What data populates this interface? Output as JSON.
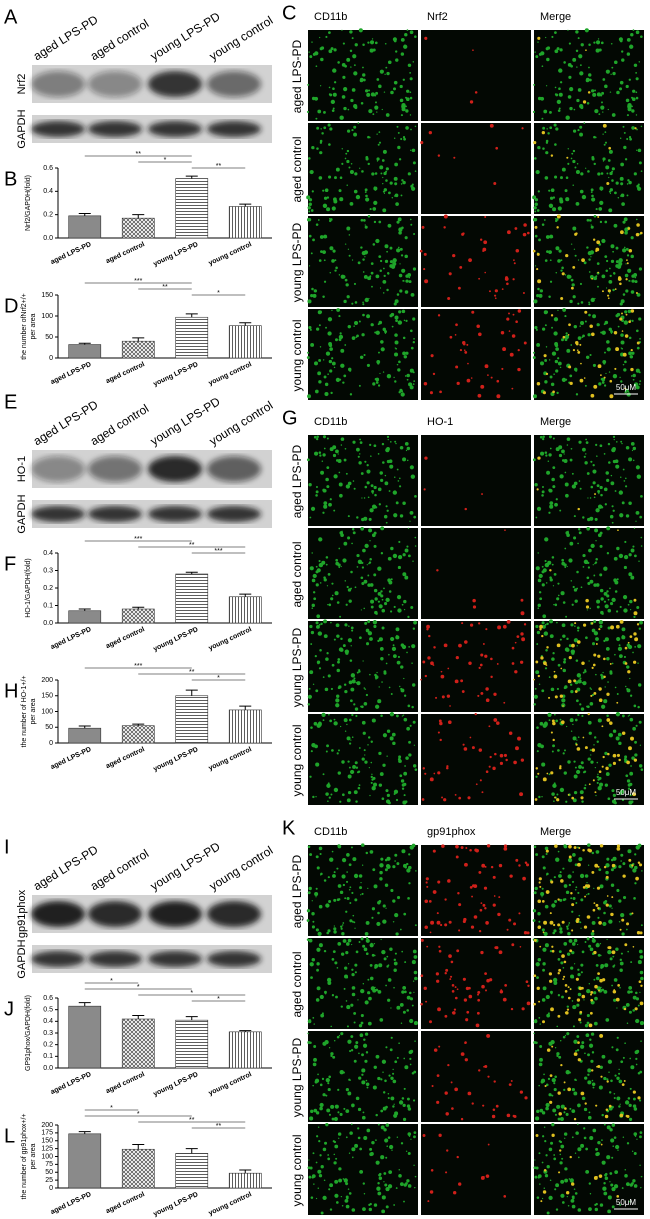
{
  "sections": [
    {
      "blot": {
        "letter": "A",
        "columns": [
          "aged LPS-PD",
          "aged control",
          "young LPS-PD",
          "young control"
        ],
        "rows": [
          "Nrf2",
          "GAPDH"
        ]
      },
      "micro": {
        "letter": "C",
        "headers": [
          "CD11b",
          "Nrf2",
          "Merge"
        ],
        "rows": [
          "aged LPS-PD",
          "aged control",
          "young LPS-PD",
          "young control"
        ],
        "scale": "50μM"
      }
    },
    {
      "blot": {
        "letter": "E",
        "columns": [
          "aged LPS-PD",
          "aged control",
          "young LPS-PD",
          "young control"
        ],
        "rows": [
          "HO-1",
          "GAPDH"
        ]
      },
      "micro": {
        "letter": "G",
        "headers": [
          "CD11b",
          "HO-1",
          "Merge"
        ],
        "rows": [
          "aged LPS-PD",
          "aged control",
          "young LPS-PD",
          "young control"
        ],
        "scale": "50μM"
      }
    },
    {
      "blot": {
        "letter": "I",
        "columns": [
          "aged LPS-PD",
          "aged control",
          "young LPS-PD",
          "young control"
        ],
        "rows": [
          "gp91phox",
          "GAPDH"
        ]
      },
      "micro": {
        "letter": "K",
        "headers": [
          "CD11b",
          "gp91phox",
          "Merge"
        ],
        "rows": [
          "aged LPS-PD",
          "aged control",
          "young LPS-PD",
          "young control"
        ],
        "scale": "50μM"
      }
    }
  ],
  "chart_data": [
    {
      "type": "bar",
      "letter": "B",
      "ylabel": [
        "Nrf2/GAPDH(fold)"
      ],
      "categories": [
        "aged LPS-PD",
        "aged control",
        "young LPS-PD",
        "young control"
      ],
      "values": [
        0.19,
        0.17,
        0.51,
        0.27
      ],
      "errors": [
        0.02,
        0.03,
        0.02,
        0.02
      ],
      "ylim": [
        0,
        0.6
      ],
      "yticks": [
        {
          "value": 0,
          "label": "0.0"
        },
        {
          "value": 0.2,
          "label": "0.2"
        },
        {
          "value": 0.4,
          "label": "0.4"
        },
        {
          "value": 0.6,
          "label": "0.6"
        }
      ],
      "annotations": [
        {
          "text": "**",
          "pair": [
            0,
            2
          ]
        },
        {
          "text": "*",
          "pair": [
            1,
            2
          ]
        },
        {
          "text": "**",
          "pair": [
            2,
            3
          ]
        }
      ]
    },
    {
      "type": "bar",
      "letter": "D",
      "ylabel": [
        "the number ofNrf2+/+",
        "per area"
      ],
      "categories": [
        "aged LPS-PD",
        "aged control",
        "young LPS-PD",
        "young control"
      ],
      "values": [
        32,
        40,
        97,
        77
      ],
      "errors": [
        3,
        8,
        8,
        7
      ],
      "ylim": [
        0,
        150
      ],
      "yticks": [
        0,
        50,
        100,
        150
      ],
      "annotations": [
        {
          "text": "***",
          "pair": [
            0,
            2
          ]
        },
        {
          "text": "**",
          "pair": [
            1,
            2
          ]
        },
        {
          "text": "*",
          "pair": [
            2,
            3
          ]
        }
      ]
    },
    {
      "type": "bar",
      "letter": "F",
      "ylabel": [
        "HO-1/GAPDH(fold)"
      ],
      "categories": [
        "aged LPS-PD",
        "aged control",
        "young LPS-PD",
        "young control"
      ],
      "values": [
        0.07,
        0.08,
        0.28,
        0.15
      ],
      "errors": [
        0.01,
        0.01,
        0.01,
        0.015
      ],
      "ylim": [
        0,
        0.4
      ],
      "yticks": [
        {
          "value": 0,
          "label": "0.0"
        },
        {
          "value": 0.1,
          "label": "0.1"
        },
        {
          "value": 0.2,
          "label": "0.2"
        },
        {
          "value": 0.3,
          "label": "0.3"
        },
        {
          "value": 0.4,
          "label": "0.4"
        }
      ],
      "annotations": [
        {
          "text": "***",
          "pair": [
            0,
            2
          ]
        },
        {
          "text": "**",
          "pair": [
            1,
            3
          ]
        },
        {
          "text": "***",
          "pair": [
            2,
            3
          ]
        }
      ]
    },
    {
      "type": "bar",
      "letter": "H",
      "ylabel": [
        "the number of HO-1+/+",
        "per area"
      ],
      "categories": [
        "aged LPS-PD",
        "aged control",
        "young LPS-PD",
        "young control"
      ],
      "values": [
        47,
        55,
        150,
        105
      ],
      "errors": [
        7,
        5,
        18,
        12
      ],
      "ylim": [
        0,
        200
      ],
      "yticks": [
        0,
        50,
        100,
        150,
        200
      ],
      "annotations": [
        {
          "text": "***",
          "pair": [
            0,
            2
          ]
        },
        {
          "text": "**",
          "pair": [
            1,
            3
          ]
        },
        {
          "text": "*",
          "pair": [
            2,
            3
          ]
        }
      ]
    },
    {
      "type": "bar",
      "letter": "J",
      "ylabel": [
        "GP91phox/GAPDH(fold)"
      ],
      "categories": [
        "aged LPS-PD",
        "aged control",
        "young LPS-PD",
        "young control"
      ],
      "values": [
        0.53,
        0.42,
        0.41,
        0.31
      ],
      "errors": [
        0.03,
        0.03,
        0.03,
        0.01
      ],
      "ylim": [
        0,
        0.6
      ],
      "yticks": [
        {
          "value": 0,
          "label": "0.0"
        },
        {
          "value": 0.1,
          "label": "0.1"
        },
        {
          "value": 0.2,
          "label": "0.2"
        },
        {
          "value": 0.3,
          "label": "0.3"
        },
        {
          "value": 0.4,
          "label": "0.4"
        },
        {
          "value": 0.5,
          "label": "0.5"
        },
        {
          "value": 0.6,
          "label": "0.6"
        }
      ],
      "annotations": [
        {
          "text": "*",
          "pair": [
            0,
            1
          ]
        },
        {
          "text": "*",
          "pair": [
            0,
            2
          ]
        },
        {
          "text": "*",
          "pair": [
            1,
            3
          ]
        },
        {
          "text": "*",
          "pair": [
            2,
            3
          ]
        }
      ]
    },
    {
      "type": "bar",
      "letter": "L",
      "ylabel": [
        "the number of gp91phox+/+",
        "per area"
      ],
      "categories": [
        "aged LPS-PD",
        "aged control",
        "young LPS-PD",
        "young control"
      ],
      "values": [
        172,
        123,
        110,
        47
      ],
      "errors": [
        7,
        15,
        15,
        10
      ],
      "ylim": [
        0,
        200
      ],
      "yticks": [
        0,
        25,
        50,
        75,
        100,
        125,
        150,
        175,
        200
      ],
      "annotations": [
        {
          "text": "*",
          "pair": [
            0,
            1
          ]
        },
        {
          "text": "*",
          "pair": [
            0,
            2
          ]
        },
        {
          "text": "**",
          "pair": [
            1,
            3
          ]
        },
        {
          "text": "**",
          "pair": [
            2,
            3
          ]
        }
      ]
    }
  ]
}
